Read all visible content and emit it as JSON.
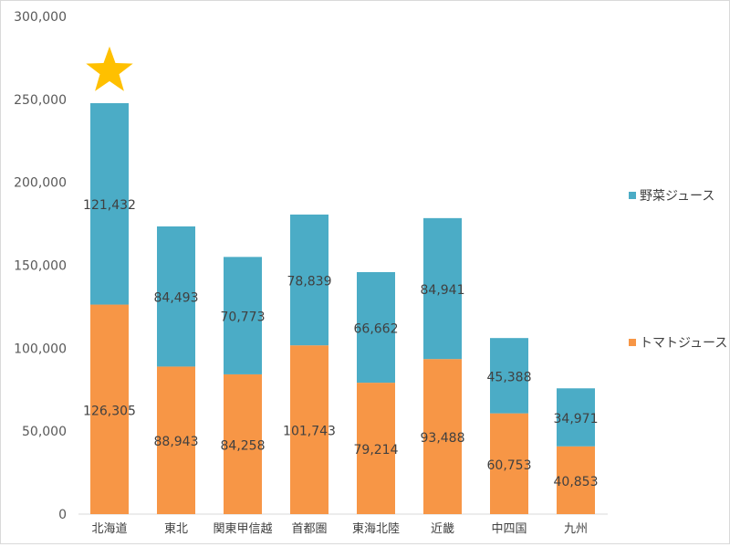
{
  "chart_data": {
    "type": "bar",
    "stacked": true,
    "categories": [
      "北海道",
      "東北",
      "関東甲信越",
      "首都圏",
      "東海北陸",
      "近畿",
      "中四国",
      "九州"
    ],
    "series": [
      {
        "name": "トマトジュース",
        "color": "#f79646",
        "values": [
          126305,
          88943,
          84258,
          101743,
          79214,
          93488,
          60753,
          40853
        ],
        "labels": [
          "126,305",
          "88,943",
          "84,258",
          "101,743",
          "79,214",
          "93,488",
          "60,753",
          "40,853"
        ]
      },
      {
        "name": "野菜ジュース",
        "color": "#4bacc6",
        "values": [
          121432,
          84493,
          70773,
          78839,
          66662,
          84941,
          45388,
          34971
        ],
        "labels": [
          "121,432",
          "84,493",
          "70,773",
          "78,839",
          "66,662",
          "84,941",
          "45,388",
          "34,971"
        ]
      }
    ],
    "yticks": [
      "0",
      "50,000",
      "100,000",
      "150,000",
      "200,000",
      "250,000",
      "300,000"
    ],
    "ylim": [
      0,
      300000
    ],
    "grid": false,
    "legend_position": "right",
    "legend_order": [
      "野菜ジュース",
      "トマトジュース"
    ],
    "highlight": {
      "category": "北海道",
      "marker": "star",
      "color": "#ffc000"
    }
  }
}
